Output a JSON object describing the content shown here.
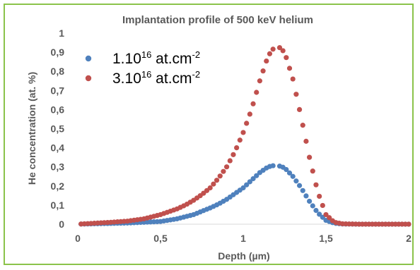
{
  "chart_data": {
    "type": "scatter",
    "title": "Implantation profile of 500 keV helium",
    "xlabel": "Depth (µm)",
    "ylabel": "He concentration (at. %)",
    "xlim": [
      0,
      2
    ],
    "ylim": [
      0,
      1
    ],
    "x_ticks": [
      "0",
      "0,5",
      "1",
      "1,5",
      "2"
    ],
    "y_ticks": [
      "0",
      "0,1",
      "0,2",
      "0,3",
      "0,4",
      "0,5",
      "0,6",
      "0,7",
      "0,8",
      "0,9",
      "1"
    ],
    "grid": false,
    "legend_position": "top-left",
    "series": [
      {
        "name_parts": [
          "1.10",
          "16",
          " at.cm",
          "-2"
        ],
        "color": "#4f81bd",
        "peak_x": 1.2,
        "points": [
          [
            0.0,
            0.0
          ],
          [
            0.1,
            0.002
          ],
          [
            0.2,
            0.004
          ],
          [
            0.3,
            0.006
          ],
          [
            0.4,
            0.01
          ],
          [
            0.5,
            0.014
          ],
          [
            0.6,
            0.028
          ],
          [
            0.7,
            0.05
          ],
          [
            0.8,
            0.085
          ],
          [
            0.85,
            0.105
          ],
          [
            0.9,
            0.13
          ],
          [
            0.95,
            0.16
          ],
          [
            1.0,
            0.19
          ],
          [
            1.05,
            0.23
          ],
          [
            1.1,
            0.27
          ],
          [
            1.15,
            0.3
          ],
          [
            1.2,
            0.31
          ],
          [
            1.25,
            0.295
          ],
          [
            1.3,
            0.25
          ],
          [
            1.35,
            0.19
          ],
          [
            1.4,
            0.12
          ],
          [
            1.45,
            0.06
          ],
          [
            1.5,
            0.02
          ],
          [
            1.55,
            0.005
          ],
          [
            1.6,
            0.001
          ],
          [
            1.7,
            0.0
          ],
          [
            1.8,
            0.0
          ],
          [
            1.9,
            0.0
          ],
          [
            2.0,
            0.0
          ]
        ]
      },
      {
        "name_parts": [
          "3.10",
          "16",
          " at.cm",
          "-2"
        ],
        "color": "#c0504d",
        "peak_x": 1.2,
        "points": [
          [
            0.0,
            0.0
          ],
          [
            0.1,
            0.005
          ],
          [
            0.2,
            0.01
          ],
          [
            0.3,
            0.016
          ],
          [
            0.4,
            0.028
          ],
          [
            0.5,
            0.05
          ],
          [
            0.55,
            0.065
          ],
          [
            0.6,
            0.08
          ],
          [
            0.65,
            0.1
          ],
          [
            0.7,
            0.125
          ],
          [
            0.75,
            0.155
          ],
          [
            0.8,
            0.19
          ],
          [
            0.85,
            0.24
          ],
          [
            0.9,
            0.3
          ],
          [
            0.95,
            0.38
          ],
          [
            1.0,
            0.48
          ],
          [
            1.05,
            0.6
          ],
          [
            1.1,
            0.75
          ],
          [
            1.15,
            0.88
          ],
          [
            1.2,
            0.94
          ],
          [
            1.25,
            0.9
          ],
          [
            1.3,
            0.76
          ],
          [
            1.35,
            0.56
          ],
          [
            1.4,
            0.35
          ],
          [
            1.45,
            0.17
          ],
          [
            1.5,
            0.05
          ],
          [
            1.55,
            0.01
          ],
          [
            1.6,
            0.002
          ],
          [
            1.7,
            0.0
          ],
          [
            1.8,
            0.0
          ],
          [
            1.9,
            0.0
          ],
          [
            2.0,
            0.0
          ]
        ]
      }
    ]
  }
}
